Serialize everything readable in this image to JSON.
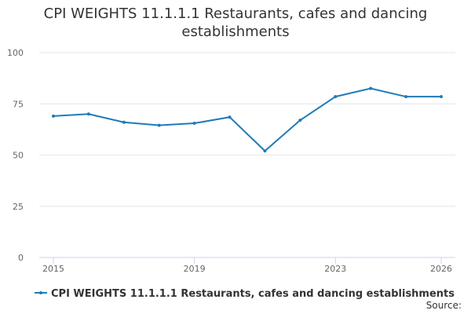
{
  "chart_data": {
    "type": "line",
    "title": "CPI WEIGHTS 11.1.1.1 Restaurants, cafes and dancing establishments",
    "x": [
      2015,
      2016,
      2017,
      2018,
      2019,
      2020,
      2021,
      2022,
      2023,
      2024,
      2025,
      2026
    ],
    "series": [
      {
        "name": "CPI WEIGHTS 11.1.1.1 Restaurants, cafes and dancing establishments",
        "color": "#1f7bb6",
        "values": [
          69,
          70,
          66,
          64.5,
          65.5,
          68.5,
          52,
          67,
          78.5,
          82.5,
          78.5,
          78.5
        ]
      }
    ],
    "xlim": [
      2014.6,
      2026.4
    ],
    "xticks": [
      2015,
      2019,
      2023,
      2026
    ],
    "ylim": [
      0,
      100
    ],
    "yticks": [
      0,
      25,
      50,
      75,
      100
    ],
    "grid": true,
    "source": "Source:"
  }
}
